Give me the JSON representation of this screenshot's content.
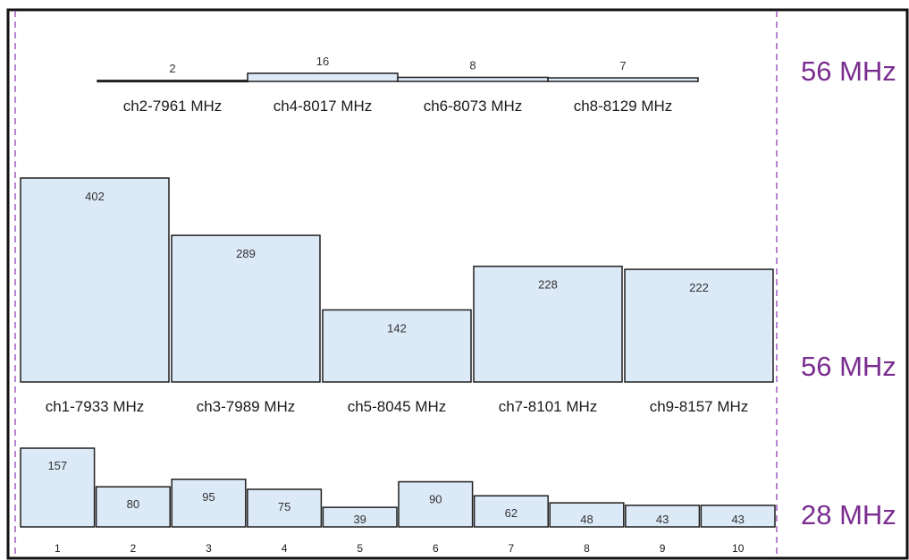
{
  "band_labels": [
    "56 MHz",
    "56 MHz",
    "28 MHz"
  ],
  "colors": {
    "bar_fill": "#dce9f7",
    "bar_stroke": "#1f1f1f",
    "band_label": "#7a2d8f",
    "guide": "#a05cbf",
    "border": "#111111"
  },
  "chart_data": [
    {
      "type": "bar",
      "categories": [
        "ch2-7961 MHz",
        "ch4-8017 MHz",
        "ch6-8073 MHz",
        "ch8-8129 MHz"
      ],
      "values": [
        2,
        16,
        8,
        7
      ],
      "ylim": [
        0,
        402
      ]
    },
    {
      "type": "bar",
      "categories": [
        "ch1-7933 MHz",
        "ch3-7989 MHz",
        "ch5-8045 MHz",
        "ch7-8101 MHz",
        "ch9-8157 MHz"
      ],
      "values": [
        402,
        289,
        142,
        228,
        222
      ],
      "ylim": [
        0,
        402
      ]
    },
    {
      "type": "bar",
      "categories": [
        "1",
        "2",
        "3",
        "4",
        "5",
        "6",
        "7",
        "8",
        "9",
        "10"
      ],
      "values": [
        157,
        80,
        95,
        75,
        39,
        90,
        62,
        48,
        43,
        43
      ],
      "ylim": [
        0,
        157
      ]
    }
  ]
}
